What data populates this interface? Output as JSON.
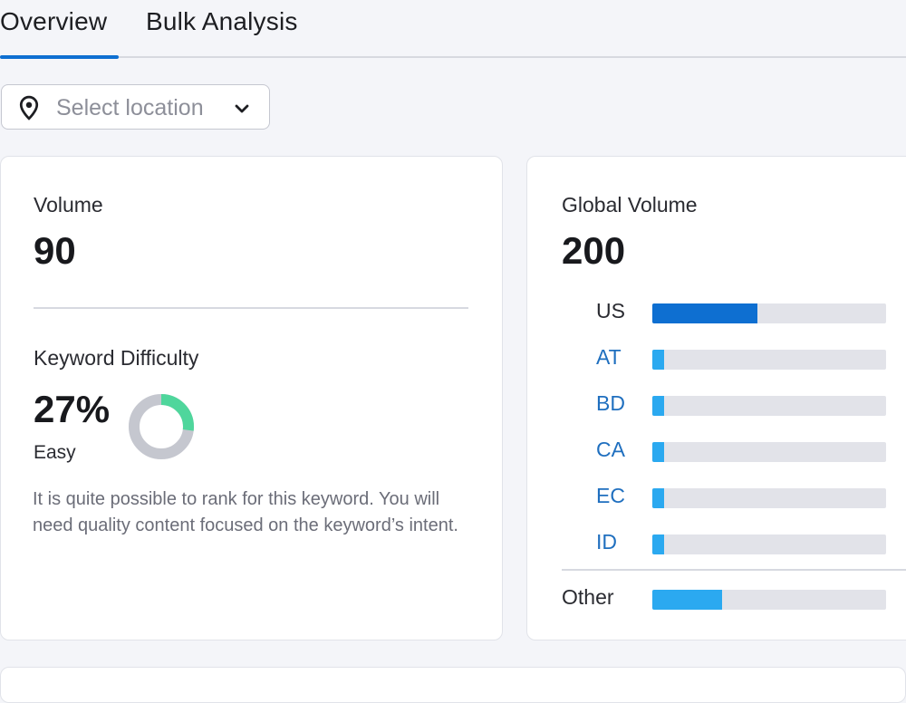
{
  "tabs": [
    {
      "label": "Overview",
      "active": true
    },
    {
      "label": "Bulk Analysis",
      "active": false
    }
  ],
  "location_select": {
    "placeholder": "Select location",
    "icon": "location-pin-icon",
    "chevron": "chevron-down-icon"
  },
  "volume": {
    "label": "Volume",
    "value": "90"
  },
  "keyword_difficulty": {
    "label": "Keyword Difficulty",
    "value": "27%",
    "percent": 27,
    "level": "Easy",
    "description": "It is quite possible to rank for this keyword. You will need quality content focused on the keyword’s intent.",
    "colors": {
      "filled": "#4fd69c",
      "track": "#c5c7cf"
    }
  },
  "global_volume": {
    "label": "Global Volume",
    "value": "200",
    "countries": [
      {
        "code": "US",
        "share": 0.45,
        "color": "#0e6fd1",
        "highlighted": true
      },
      {
        "code": "AT",
        "share": 0.05,
        "color": "#2ba9f0",
        "highlighted": false
      },
      {
        "code": "BD",
        "share": 0.05,
        "color": "#2ba9f0",
        "highlighted": false
      },
      {
        "code": "CA",
        "share": 0.05,
        "color": "#2ba9f0",
        "highlighted": false
      },
      {
        "code": "EC",
        "share": 0.05,
        "color": "#2ba9f0",
        "highlighted": false
      },
      {
        "code": "ID",
        "share": 0.05,
        "color": "#2ba9f0",
        "highlighted": false
      }
    ],
    "other": {
      "label": "Other",
      "share": 0.3,
      "color": "#2ba9f0"
    }
  }
}
